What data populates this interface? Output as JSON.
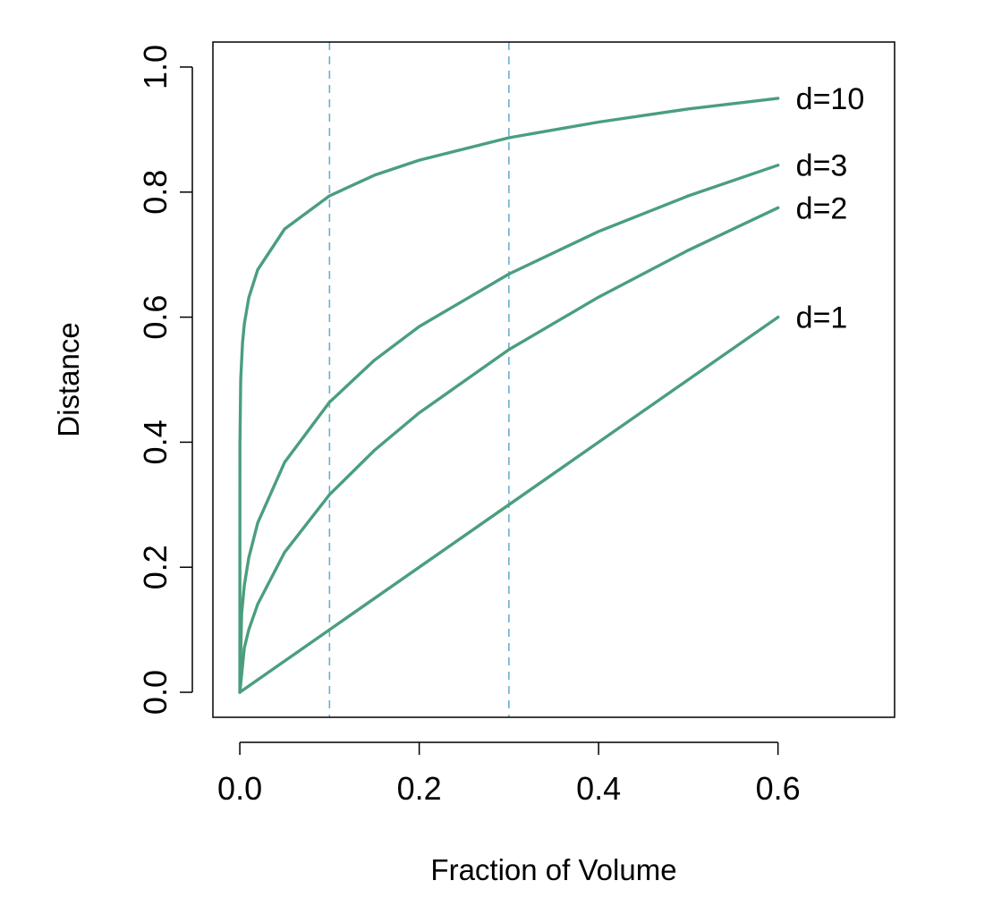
{
  "chart_data": {
    "type": "line",
    "title": "",
    "xlabel": "Fraction of Volume",
    "ylabel": "Distance",
    "xlim": [
      -0.03,
      0.73
    ],
    "ylim": [
      -0.04,
      1.04
    ],
    "xticks": [
      {
        "value": 0.0,
        "label": "0.0"
      },
      {
        "value": 0.2,
        "label": "0.2"
      },
      {
        "value": 0.4,
        "label": "0.4"
      },
      {
        "value": 0.6,
        "label": "0.6"
      }
    ],
    "yticks": [
      {
        "value": 0.0,
        "label": "0.0"
      },
      {
        "value": 0.2,
        "label": "0.2"
      },
      {
        "value": 0.4,
        "label": "0.4"
      },
      {
        "value": 0.6,
        "label": "0.6"
      },
      {
        "value": 0.8,
        "label": "0.8"
      },
      {
        "value": 1.0,
        "label": "1.0"
      }
    ],
    "grid": false,
    "legend": "none",
    "line_color": "#4a9e7e",
    "reference_line_color": "#6aaed6",
    "reference_lines_x": [
      0.1,
      0.3
    ],
    "series": [
      {
        "label": "d=1",
        "x": [
          0,
          0.1,
          0.2,
          0.3,
          0.4,
          0.5,
          0.6
        ],
        "y": [
          0,
          0.1,
          0.2,
          0.3,
          0.4,
          0.5,
          0.6
        ]
      },
      {
        "label": "d=2",
        "x": [
          0,
          0.005,
          0.01,
          0.02,
          0.05,
          0.1,
          0.15,
          0.2,
          0.3,
          0.4,
          0.5,
          0.6
        ],
        "y": [
          0,
          0.071,
          0.1,
          0.141,
          0.224,
          0.316,
          0.387,
          0.447,
          0.548,
          0.632,
          0.707,
          0.775
        ]
      },
      {
        "label": "d=3",
        "x": [
          0,
          0.002,
          0.005,
          0.01,
          0.02,
          0.05,
          0.1,
          0.15,
          0.2,
          0.3,
          0.4,
          0.5,
          0.6
        ],
        "y": [
          0,
          0.126,
          0.171,
          0.215,
          0.271,
          0.368,
          0.464,
          0.531,
          0.585,
          0.669,
          0.737,
          0.794,
          0.843
        ]
      },
      {
        "label": "d=10",
        "x": [
          0,
          0.0001,
          0.001,
          0.003,
          0.005,
          0.01,
          0.02,
          0.05,
          0.1,
          0.15,
          0.2,
          0.3,
          0.4,
          0.5,
          0.6
        ],
        "y": [
          0,
          0.398,
          0.501,
          0.559,
          0.589,
          0.631,
          0.676,
          0.741,
          0.794,
          0.827,
          0.851,
          0.887,
          0.912,
          0.933,
          0.95
        ]
      }
    ]
  }
}
